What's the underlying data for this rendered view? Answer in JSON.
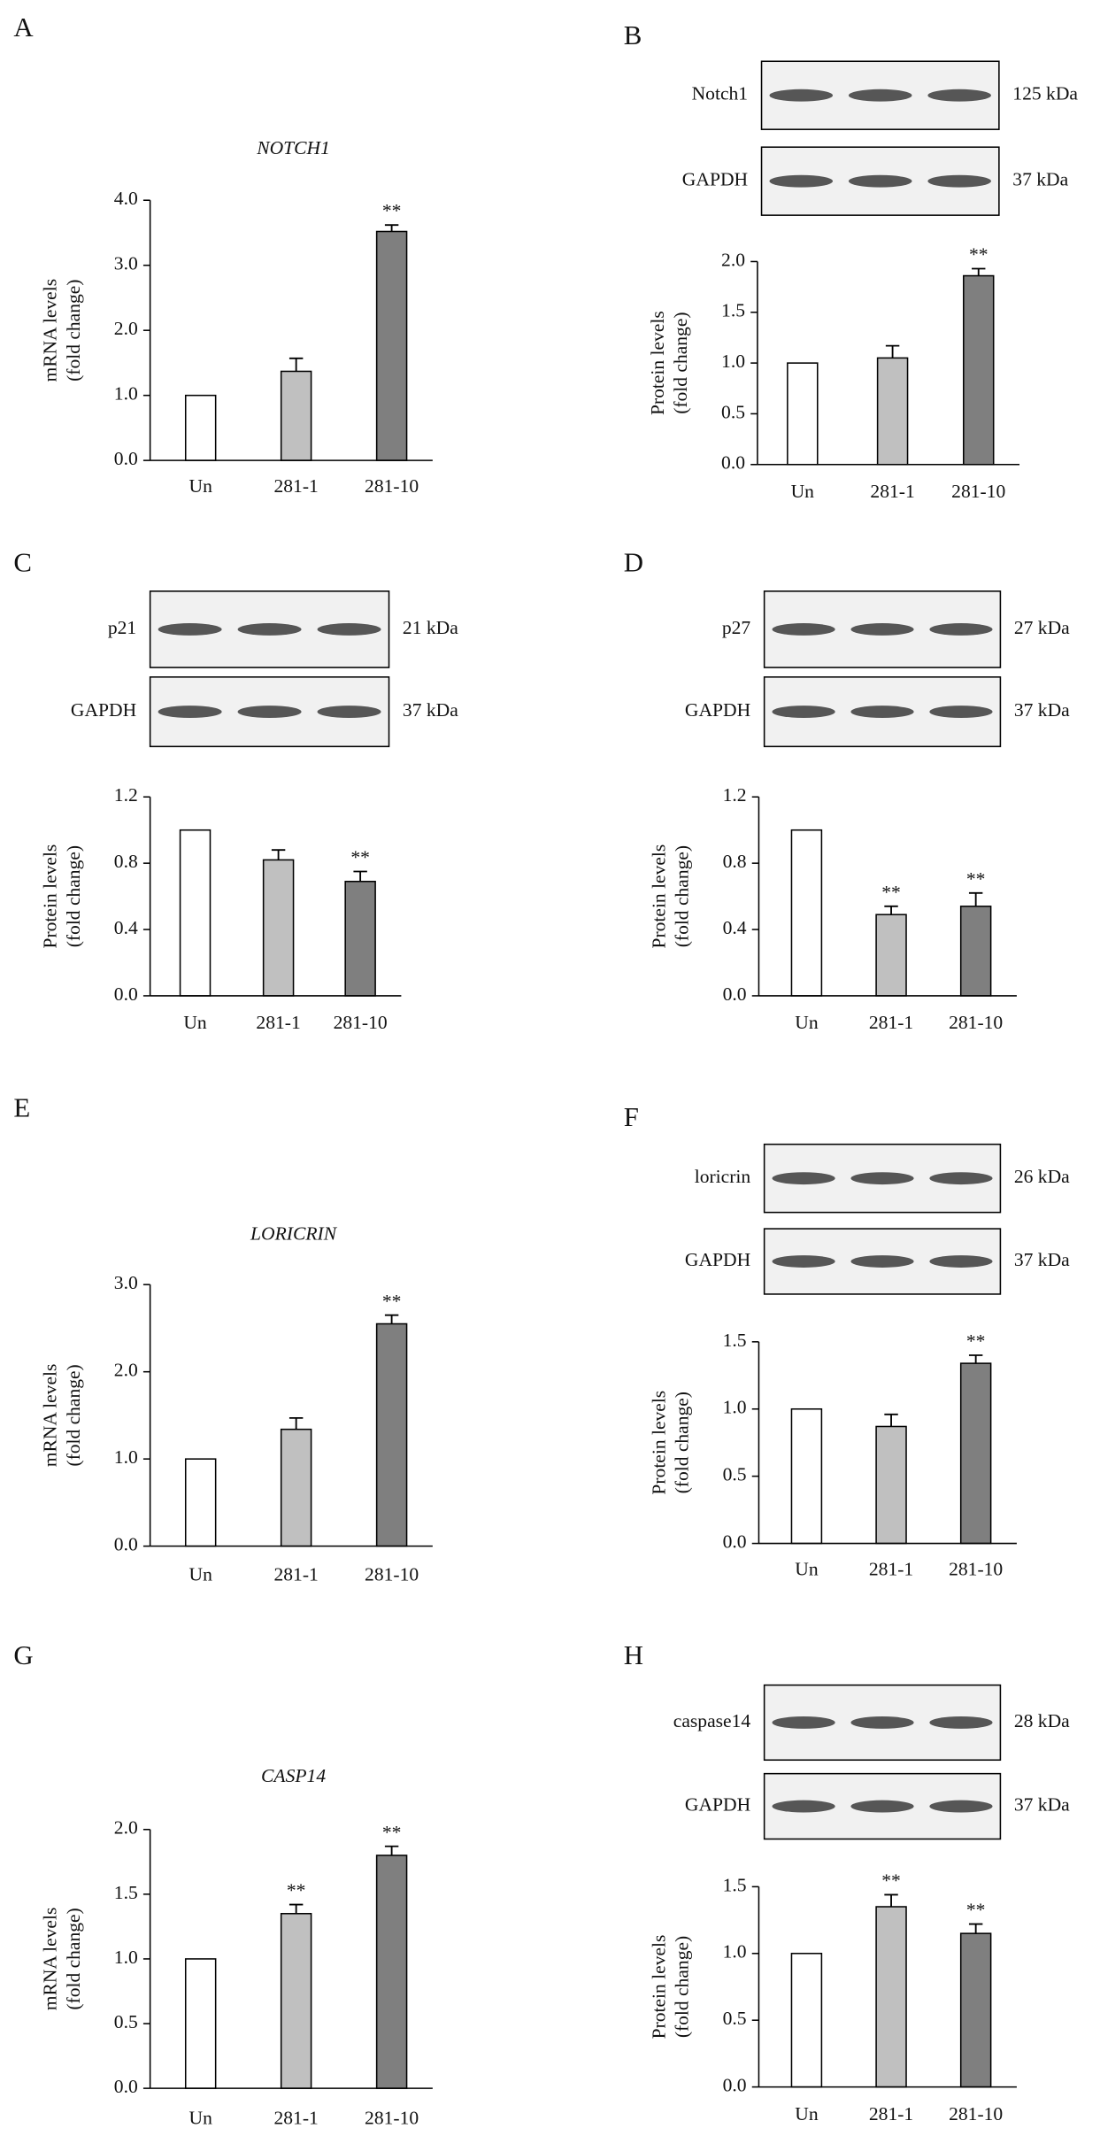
{
  "chart_data": [
    {
      "type": "bar",
      "panel": "A",
      "title": "NOTCH1",
      "y_label": [
        "mRNA levels",
        "(fold change)"
      ],
      "categories": [
        "Un",
        "281-1",
        "281-10"
      ],
      "values": [
        1,
        1.37,
        3.52
      ],
      "errors": [
        null,
        0.2,
        0.1
      ],
      "significance": [
        null,
        null,
        "**"
      ],
      "colors": [
        "#ffffff",
        "#c0c0c0",
        "#7f7f7f"
      ],
      "ylim": [
        0,
        4
      ],
      "yticks": [
        {
          "value": 0,
          "label": "0.0"
        },
        {
          "value": 1,
          "label": "1.0"
        },
        {
          "value": 2,
          "label": "2.0"
        },
        {
          "value": 3,
          "label": "3.0"
        },
        {
          "value": 4,
          "label": "4.0"
        }
      ]
    },
    {
      "type": "bar",
      "panel": "B",
      "y_label": [
        "Protein levels",
        "(fold change)"
      ],
      "blots": [
        {
          "label": "Notch1",
          "size": "125 kDa"
        },
        {
          "label": "GAPDH",
          "size": "37 kDa"
        }
      ],
      "categories": [
        "Un",
        "281-1",
        "281-10"
      ],
      "values": [
        1,
        1.05,
        1.86
      ],
      "errors": [
        null,
        0.12,
        0.07
      ],
      "significance": [
        null,
        null,
        "**"
      ],
      "colors": [
        "#ffffff",
        "#c0c0c0",
        "#7f7f7f"
      ],
      "ylim": [
        0,
        2
      ],
      "yticks": [
        {
          "value": 0,
          "label": "0.0"
        },
        {
          "value": 0.5,
          "label": "0.5"
        },
        {
          "value": 1,
          "label": "1.0"
        },
        {
          "value": 1.5,
          "label": "1.5"
        },
        {
          "value": 2,
          "label": "2.0"
        }
      ]
    },
    {
      "type": "bar",
      "panel": "C",
      "y_label": [
        "Protein levels",
        "(fold change)"
      ],
      "blots": [
        {
          "label": "p21",
          "size": "21 kDa"
        },
        {
          "label": "GAPDH",
          "size": "37 kDa"
        }
      ],
      "categories": [
        "Un",
        "281-1",
        "281-10"
      ],
      "values": [
        1,
        0.82,
        0.69
      ],
      "errors": [
        null,
        0.06,
        0.06
      ],
      "significance": [
        null,
        null,
        "**"
      ],
      "colors": [
        "#ffffff",
        "#c0c0c0",
        "#7f7f7f"
      ],
      "ylim": [
        0,
        1.2
      ],
      "yticks": [
        {
          "value": 0,
          "label": "0.0"
        },
        {
          "value": 0.4,
          "label": "0.4"
        },
        {
          "value": 0.8,
          "label": "0.8"
        },
        {
          "value": 1.2,
          "label": "1.2"
        }
      ]
    },
    {
      "type": "bar",
      "panel": "D",
      "y_label": [
        "Protein levels",
        "(fold change)"
      ],
      "blots": [
        {
          "label": "p27",
          "size": "27 kDa"
        },
        {
          "label": "GAPDH",
          "size": "37 kDa"
        }
      ],
      "categories": [
        "Un",
        "281-1",
        "281-10"
      ],
      "values": [
        1,
        0.49,
        0.54
      ],
      "errors": [
        null,
        0.05,
        0.08
      ],
      "significance": [
        null,
        "**",
        "**"
      ],
      "colors": [
        "#ffffff",
        "#c0c0c0",
        "#7f7f7f"
      ],
      "ylim": [
        0,
        1.2
      ],
      "yticks": [
        {
          "value": 0,
          "label": "0.0"
        },
        {
          "value": 0.4,
          "label": "0.4"
        },
        {
          "value": 0.8,
          "label": "0.8"
        },
        {
          "value": 1.2,
          "label": "1.2"
        }
      ]
    },
    {
      "type": "bar",
      "panel": "E",
      "title": "LORICRIN",
      "y_label": [
        "mRNA levels",
        "(fold change)"
      ],
      "categories": [
        "Un",
        "281-1",
        "281-10"
      ],
      "values": [
        1,
        1.34,
        2.55
      ],
      "errors": [
        null,
        0.13,
        0.1
      ],
      "significance": [
        null,
        null,
        "**"
      ],
      "colors": [
        "#ffffff",
        "#c0c0c0",
        "#7f7f7f"
      ],
      "ylim": [
        0,
        3
      ],
      "yticks": [
        {
          "value": 0,
          "label": "0.0"
        },
        {
          "value": 1,
          "label": "1.0"
        },
        {
          "value": 2,
          "label": "2.0"
        },
        {
          "value": 3,
          "label": "3.0"
        }
      ]
    },
    {
      "type": "bar",
      "panel": "F",
      "y_label": [
        "Protein levels",
        "(fold change)"
      ],
      "blots": [
        {
          "label": "loricrin",
          "size": "26 kDa"
        },
        {
          "label": "GAPDH",
          "size": "37 kDa"
        }
      ],
      "categories": [
        "Un",
        "281-1",
        "281-10"
      ],
      "values": [
        1,
        0.87,
        1.34
      ],
      "errors": [
        null,
        0.09,
        0.06
      ],
      "significance": [
        null,
        null,
        "**"
      ],
      "colors": [
        "#ffffff",
        "#c0c0c0",
        "#7f7f7f"
      ],
      "ylim": [
        0,
        1.5
      ],
      "yticks": [
        {
          "value": 0,
          "label": "0.0"
        },
        {
          "value": 0.5,
          "label": "0.5"
        },
        {
          "value": 1,
          "label": "1.0"
        },
        {
          "value": 1.5,
          "label": "1.5"
        }
      ]
    },
    {
      "type": "bar",
      "panel": "G",
      "title": "CASP14",
      "y_label": [
        "mRNA levels",
        "(fold change)"
      ],
      "categories": [
        "Un",
        "281-1",
        "281-10"
      ],
      "values": [
        1,
        1.35,
        1.8
      ],
      "errors": [
        null,
        0.07,
        0.07
      ],
      "significance": [
        null,
        "**",
        "**"
      ],
      "colors": [
        "#ffffff",
        "#c0c0c0",
        "#7f7f7f"
      ],
      "ylim": [
        0,
        2
      ],
      "yticks": [
        {
          "value": 0,
          "label": "0.0"
        },
        {
          "value": 0.5,
          "label": "0.5"
        },
        {
          "value": 1,
          "label": "1.0"
        },
        {
          "value": 1.5,
          "label": "1.5"
        },
        {
          "value": 2,
          "label": "2.0"
        }
      ]
    },
    {
      "type": "bar",
      "panel": "H",
      "y_label": [
        "Protein levels",
        "(fold change)"
      ],
      "blots": [
        {
          "label": "caspase14",
          "size": "28 kDa"
        },
        {
          "label": "GAPDH",
          "size": "37 kDa"
        }
      ],
      "categories": [
        "Un",
        "281-1",
        "281-10"
      ],
      "values": [
        1,
        1.35,
        1.15
      ],
      "errors": [
        null,
        0.09,
        0.07
      ],
      "significance": [
        null,
        "**",
        "**"
      ],
      "colors": [
        "#ffffff",
        "#c0c0c0",
        "#7f7f7f"
      ],
      "ylim": [
        0,
        1.5
      ],
      "yticks": [
        {
          "value": 0,
          "label": "0.0"
        },
        {
          "value": 0.5,
          "label": "0.5"
        },
        {
          "value": 1,
          "label": "1.0"
        },
        {
          "value": 1.5,
          "label": "1.5"
        }
      ]
    }
  ]
}
